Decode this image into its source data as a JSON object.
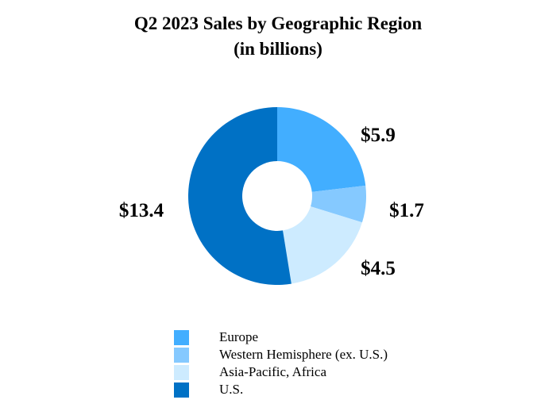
{
  "chart_data": {
    "type": "pie",
    "title": "Q2 2023 Sales by Geographic Region",
    "subtitle": "(in billions)",
    "categories": [
      "Europe",
      "Western Hemisphere (ex. U.S.)",
      "Asia-Pacific, Africa",
      "U.S."
    ],
    "values": [
      5.9,
      1.7,
      4.5,
      13.4
    ],
    "data_labels": [
      "$5.9",
      "$1.7",
      "$4.5",
      "$13.4"
    ],
    "colors": [
      "#42aeff",
      "#85c9ff",
      "#cdebff",
      "#0071c5"
    ],
    "donut": true,
    "legend_position": "bottom"
  }
}
